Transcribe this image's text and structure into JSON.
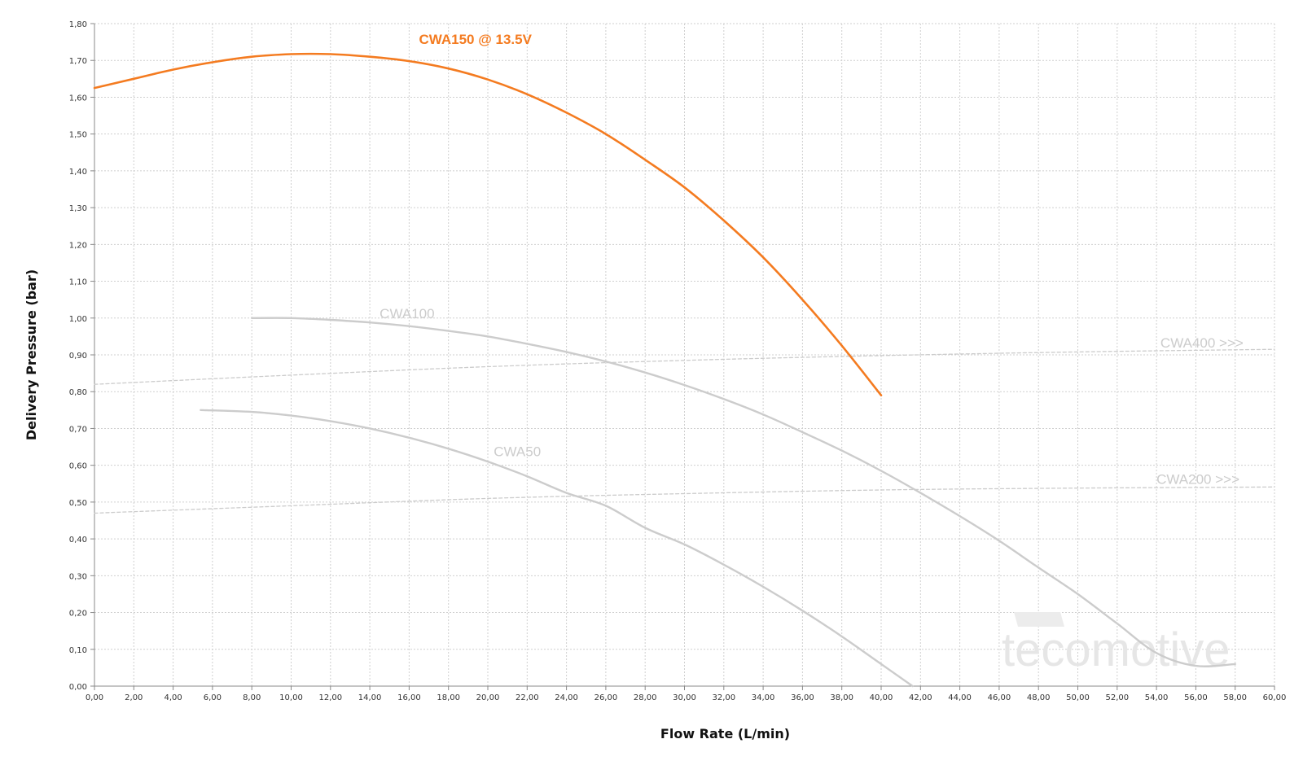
{
  "chart_data": {
    "type": "line",
    "title": "",
    "xlabel": "Flow Rate (L/min)",
    "ylabel": "Delivery Pressure (bar)",
    "xlim": [
      0,
      60
    ],
    "ylim": [
      0,
      1.8
    ],
    "x_ticks": [
      "0,00",
      "2,00",
      "4,00",
      "6,00",
      "8,00",
      "10,00",
      "12,00",
      "14,00",
      "16,00",
      "18,00",
      "20,00",
      "22,00",
      "24,00",
      "26,00",
      "28,00",
      "30,00",
      "32,00",
      "34,00",
      "36,00",
      "38,00",
      "40,00",
      "42,00",
      "44,00",
      "46,00",
      "48,00",
      "50,00",
      "52,00",
      "54,00",
      "56,00",
      "58,00",
      "60,00"
    ],
    "y_ticks": [
      "0,00",
      "0,10",
      "0,20",
      "0,30",
      "0,40",
      "0,50",
      "0,60",
      "0,70",
      "0,80",
      "0,90",
      "1,00",
      "1,10",
      "1,20",
      "1,30",
      "1,40",
      "1,50",
      "1,60",
      "1,70",
      "1,80"
    ],
    "grid": true,
    "series": [
      {
        "name": "CWA150 @ 13.5V",
        "color": "#f47b20",
        "style": "solid",
        "x": [
          0,
          2,
          4,
          6,
          8,
          10,
          12,
          14,
          16,
          18,
          20,
          22,
          24,
          26,
          28,
          30,
          32,
          34,
          36,
          38,
          40
        ],
        "y": [
          1.625,
          1.65,
          1.675,
          1.695,
          1.71,
          1.717,
          1.717,
          1.71,
          1.698,
          1.678,
          1.648,
          1.608,
          1.558,
          1.5,
          1.43,
          1.355,
          1.265,
          1.165,
          1.05,
          0.925,
          0.79
        ]
      },
      {
        "name": "CWA100",
        "color": "#cccccc",
        "style": "solid",
        "x": [
          8,
          10,
          12,
          14,
          16,
          18,
          20,
          22,
          24,
          26,
          28,
          30,
          32,
          34,
          36,
          38,
          40,
          42,
          44,
          46,
          48,
          50,
          52,
          54,
          56,
          58
        ],
        "y": [
          1.0,
          1.0,
          0.995,
          0.988,
          0.978,
          0.965,
          0.95,
          0.93,
          0.908,
          0.882,
          0.852,
          0.818,
          0.78,
          0.738,
          0.69,
          0.64,
          0.585,
          0.525,
          0.462,
          0.395,
          0.322,
          0.25,
          0.17,
          0.09,
          0.055,
          0.06
        ]
      },
      {
        "name": "CWA50",
        "color": "#cccccc",
        "style": "solid",
        "x": [
          5.4,
          8,
          10,
          12,
          14,
          16,
          18,
          20,
          22,
          24,
          26,
          28,
          30,
          32,
          34,
          36,
          38,
          40,
          41.6
        ],
        "y": [
          0.75,
          0.745,
          0.735,
          0.72,
          0.7,
          0.675,
          0.645,
          0.61,
          0.57,
          0.525,
          0.49,
          0.43,
          0.385,
          0.33,
          0.27,
          0.205,
          0.135,
          0.06,
          0.0
        ]
      },
      {
        "name": "CWA400 >>>",
        "color": "#cccccc",
        "style": "dashed",
        "x": [
          0,
          10,
          20,
          30,
          40,
          50,
          60
        ],
        "y": [
          0.82,
          0.845,
          0.868,
          0.885,
          0.898,
          0.908,
          0.915
        ]
      },
      {
        "name": "CWA200 >>>",
        "color": "#cccccc",
        "style": "dashed",
        "x": [
          0,
          10,
          20,
          30,
          40,
          50,
          60
        ],
        "y": [
          0.47,
          0.49,
          0.51,
          0.523,
          0.533,
          0.538,
          0.541
        ]
      }
    ]
  },
  "watermark": {
    "text": "tecomotive"
  }
}
